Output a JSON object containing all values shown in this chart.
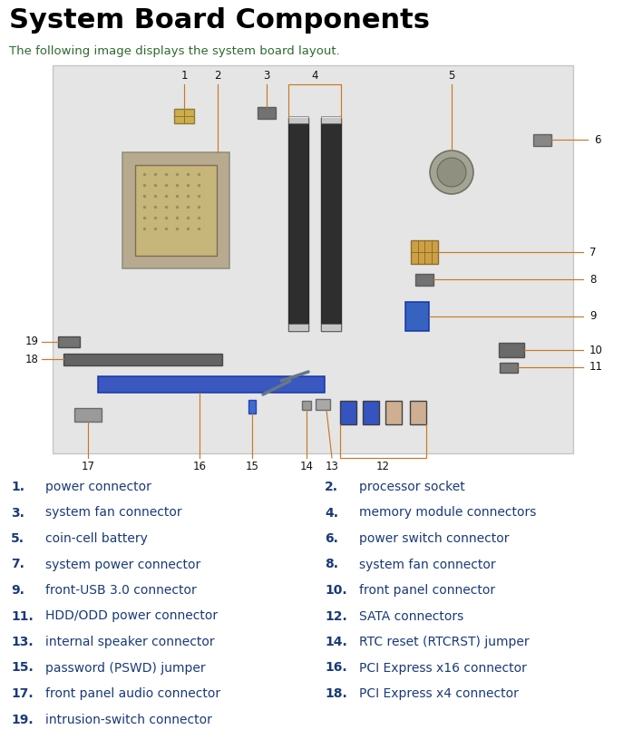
{
  "title": "System Board Components",
  "subtitle": "The following image displays the system board layout.",
  "title_color": "#000000",
  "subtitle_color": "#2d6b2d",
  "annotation_color": "#cc7722",
  "label_color": "#1a3a7a",
  "bg_color": "#ffffff",
  "left_items": [
    [
      "1.",
      "power connector"
    ],
    [
      "3.",
      "system fan connector"
    ],
    [
      "5.",
      "coin-cell battery"
    ],
    [
      "7.",
      "system power connector"
    ],
    [
      "9.",
      "front-USB 3.0 connector"
    ],
    [
      "11.",
      "HDD/ODD power connector"
    ],
    [
      "13.",
      "internal speaker connector"
    ],
    [
      "15.",
      "password (PSWD) jumper"
    ],
    [
      "17.",
      "front panel audio connector"
    ],
    [
      "19.",
      "intrusion-switch connector"
    ]
  ],
  "right_items": [
    [
      "2.",
      "processor socket"
    ],
    [
      "4.",
      "memory module connectors"
    ],
    [
      "6.",
      "power switch connector"
    ],
    [
      "8.",
      "system fan connector"
    ],
    [
      "10.",
      "front panel connector"
    ],
    [
      "12.",
      "SATA connectors"
    ],
    [
      "14.",
      "RTC reset (RTCRST) jumper"
    ],
    [
      "16.",
      "PCI Express x16 connector"
    ],
    [
      "18.",
      "PCI Express x4 connector"
    ]
  ]
}
